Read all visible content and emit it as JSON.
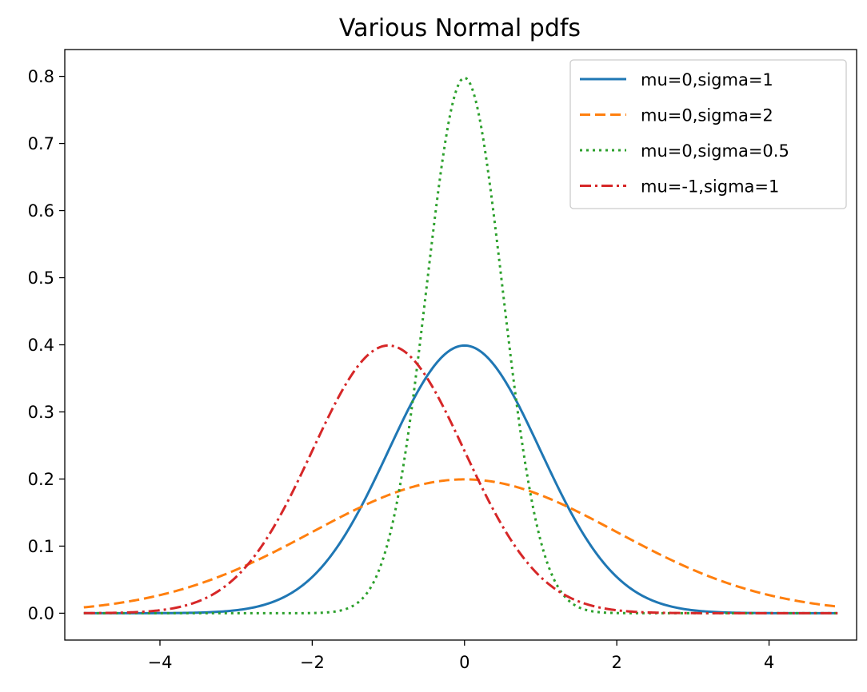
{
  "chart_data": {
    "type": "line",
    "title": "Various Normal pdfs",
    "xlabel": "",
    "ylabel": "",
    "xlim": [
      -5.25,
      5.15
    ],
    "ylim": [
      -0.04,
      0.84
    ],
    "x_range": [
      -5,
      4.9
    ],
    "x_ticks": [
      -4,
      -2,
      0,
      2,
      4
    ],
    "x_tick_labels": [
      "−4",
      "−2",
      "0",
      "2",
      "4"
    ],
    "y_ticks": [
      0.0,
      0.1,
      0.2,
      0.3,
      0.4,
      0.5,
      0.6,
      0.7,
      0.8
    ],
    "y_tick_labels": [
      "0.0",
      "0.1",
      "0.2",
      "0.3",
      "0.4",
      "0.5",
      "0.6",
      "0.7",
      "0.8"
    ],
    "grid": false,
    "legend_position": "top-right",
    "series": [
      {
        "name": "mu=0,sigma=1",
        "mu": 0,
        "sigma": 1,
        "color": "#1f77b4",
        "dash": "solid"
      },
      {
        "name": "mu=0,sigma=2",
        "mu": 0,
        "sigma": 2,
        "color": "#ff7f0e",
        "dash": "dashed"
      },
      {
        "name": "mu=0,sigma=0.5",
        "mu": 0,
        "sigma": 0.5,
        "color": "#2ca02c",
        "dash": "dotted"
      },
      {
        "name": "mu=-1,sigma=1",
        "mu": -1,
        "sigma": 1,
        "color": "#d62728",
        "dash": "dashdot"
      }
    ]
  }
}
